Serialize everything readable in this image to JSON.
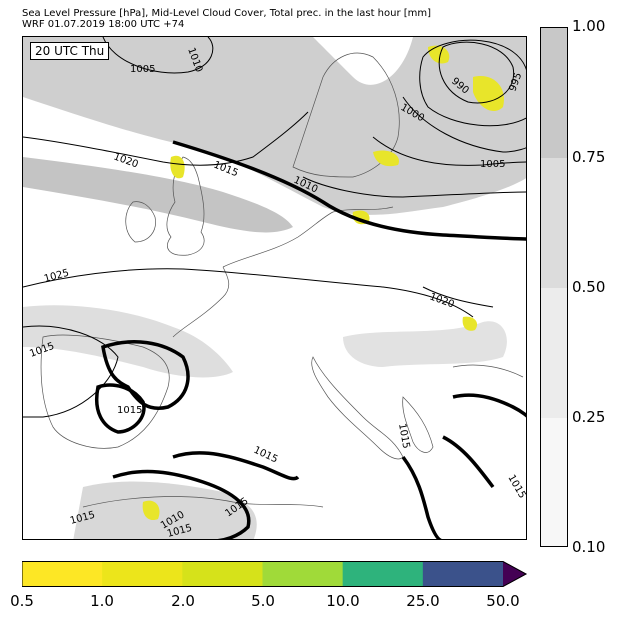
{
  "header": {
    "title_line1": "Sea Level Pressure [hPa], Mid-Level Cloud Cover, Total prec. in the last hour [mm]",
    "title_line2": "WRF 01.07.2019 18:00 UTC +74"
  },
  "map": {
    "time_label": "20 UTC Thu",
    "isobar_labels": [
      "1005",
      "1010",
      "1005",
      "990",
      "995",
      "1000",
      "1020",
      "1015",
      "1010",
      "1005",
      "1025",
      "1020",
      "1015",
      "1015",
      "1015",
      "1015",
      "1015",
      "1010",
      "1015",
      "1015",
      "1015",
      "1015"
    ]
  },
  "cloud_colorbar": {
    "ticks": [
      "1.00",
      "0.75",
      "0.50",
      "0.25",
      "0.10"
    ],
    "colors": [
      "#c8c8c8",
      "#dcdcdc",
      "#ececec",
      "#f7f7f7"
    ]
  },
  "precip_colorbar": {
    "ticks": [
      "0.5",
      "1.0",
      "2.0",
      "5.0",
      "10.0",
      "25.0",
      "50.0"
    ],
    "colors": [
      "#fde725",
      "#ece51b",
      "#d6e21a",
      "#a0da39",
      "#2eb37c",
      "#3b528b",
      "#440154"
    ]
  }
}
